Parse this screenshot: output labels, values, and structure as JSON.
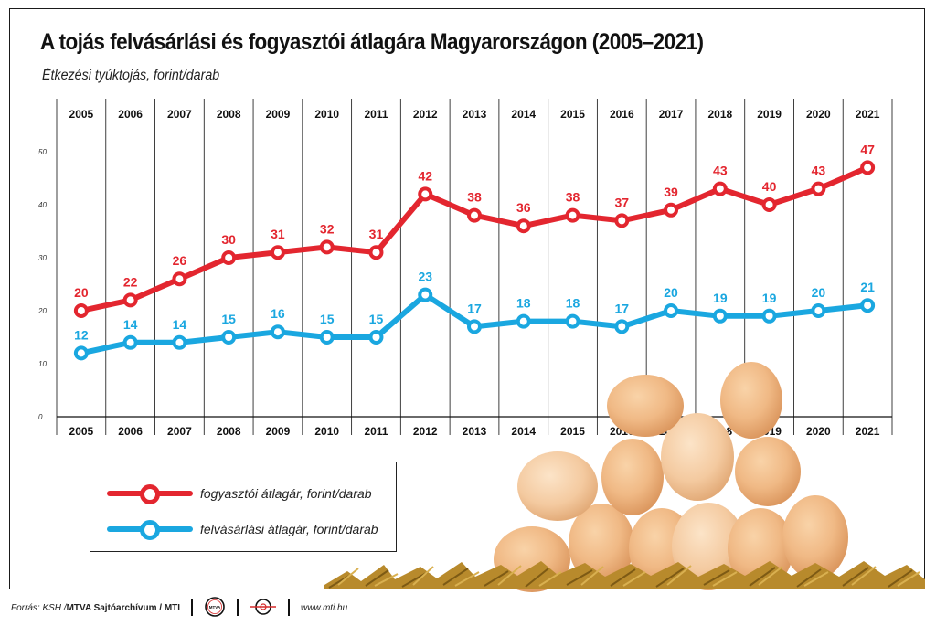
{
  "title": "A tojás felvásárlási és fogyasztói átlagára Magyarországon (2005–2021)",
  "subtitle": "Étkezési tyúktojás, forint/darab",
  "chart_data": {
    "type": "line",
    "categories": [
      "2005",
      "2006",
      "2007",
      "2008",
      "2009",
      "2010",
      "2011",
      "2012",
      "2013",
      "2014",
      "2015",
      "2016",
      "2017",
      "2018",
      "2019",
      "2020",
      "2021"
    ],
    "y_ticks": [
      0,
      10,
      20,
      30,
      40,
      50
    ],
    "ylim": [
      0,
      55
    ],
    "grid": "vertical",
    "legend_position": "bottom-left",
    "series": [
      {
        "name": "fogyasztói átlagár, forint/darab",
        "color": "#e3262f",
        "values": [
          20,
          22,
          26,
          30,
          31,
          32,
          31,
          42,
          38,
          36,
          38,
          37,
          39,
          43,
          40,
          43,
          47
        ]
      },
      {
        "name": "felvásárlási átlagár, forint/darab",
        "color": "#1aa7e0",
        "values": [
          12,
          14,
          14,
          15,
          16,
          15,
          15,
          23,
          17,
          18,
          18,
          17,
          20,
          19,
          19,
          20,
          21
        ]
      }
    ]
  },
  "footer": {
    "source_label": "Forrás: KSH / ",
    "org": "MTVA Sajtóarchívum / MTI",
    "logo_text": "MTVA",
    "website": "www.mti.hu"
  }
}
